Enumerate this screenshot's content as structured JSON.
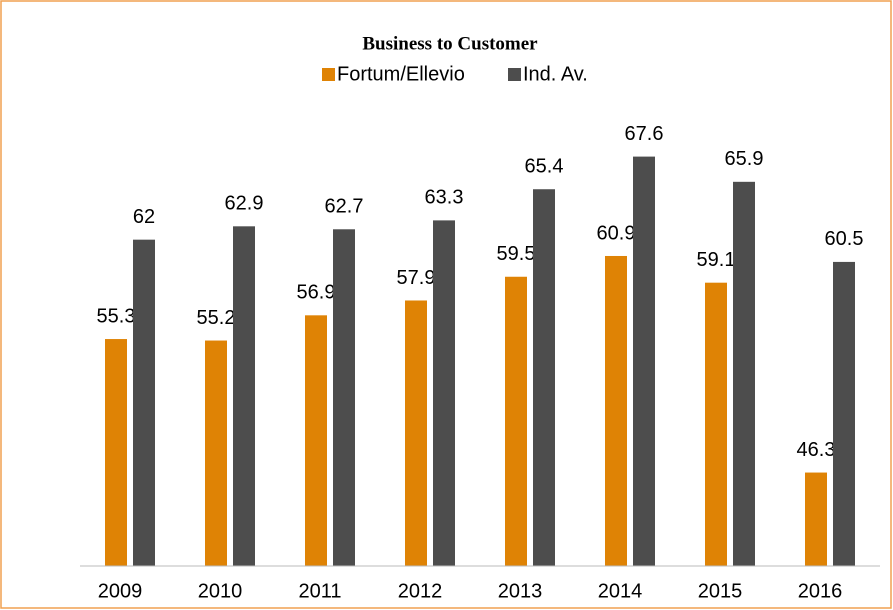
{
  "chart_data": {
    "type": "bar",
    "title": "Business to Customer",
    "categories": [
      "2009",
      "2010",
      "2011",
      "2012",
      "2013",
      "2014",
      "2015",
      "2016"
    ],
    "series": [
      {
        "name": "Fortum/Ellevio",
        "color": "#df8305",
        "values": [
          55.3,
          55.2,
          56.9,
          57.9,
          59.5,
          60.9,
          59.1,
          46.3
        ]
      },
      {
        "name": "Ind. Av.",
        "color": "#4d4d4d",
        "values": [
          62,
          62.9,
          62.7,
          63.3,
          65.4,
          67.6,
          65.9,
          60.5
        ]
      }
    ],
    "ylim": [
      40,
      70
    ],
    "legend": "top"
  }
}
